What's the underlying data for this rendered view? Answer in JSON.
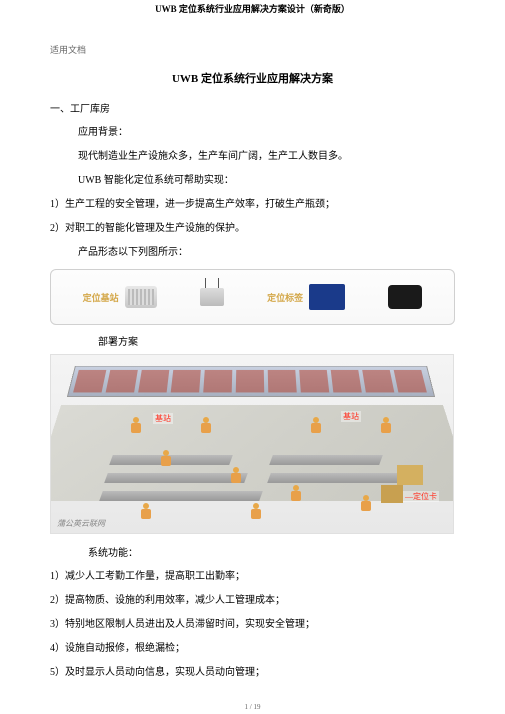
{
  "header": {
    "title": "UWB 定位系统行业应用解决方案设计（新奇版）"
  },
  "watermark": "适用文档",
  "main_title": "UWB 定位系统行业应用解决方案",
  "section1": {
    "title": "一、工厂库房",
    "bg_heading": "应用背景：",
    "bg_line1": "现代制造业生产设施众多，生产车间广阔，生产工人数目多。",
    "bg_line2": "UWB 智能化定位系统可帮助实现：",
    "pt1": "1）生产工程的安全管理，进一步提高生产效率，打破生产瓶颈；",
    "pt2": "2）对职工的智能化管理及生产设施的保护。",
    "shape_line": "产品形态以下列图所示："
  },
  "products": {
    "label1": "定位基站",
    "label2": "定位标签"
  },
  "deploy_heading": "部署方案",
  "diagram": {
    "label_station1": "基站",
    "label_station2": "基站",
    "label_card": "—定位卡",
    "corner": "蒲公英云联网"
  },
  "sys_heading": "系统功能：",
  "funcs": {
    "f1": "1）减少人工考勤工作量，提高职工出勤率；",
    "f2": "2）提高物质、设施的利用效率，减少人工管理成本；",
    "f3": "3）特别地区限制人员进出及人员滞留时间，实现安全管理；",
    "f4": "4）设施自动报修，根绝漏检；",
    "f5": "5）及时显示人员动向信息，实现人员动向管理；"
  },
  "footer": "1 / 19"
}
